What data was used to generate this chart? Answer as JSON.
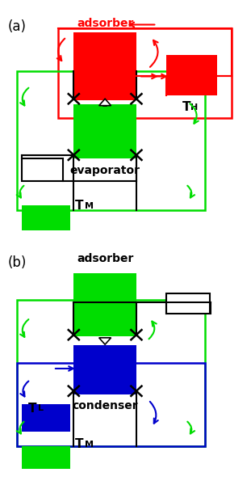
{
  "fig_width": 3.11,
  "fig_height": 6.0,
  "dpi": 100,
  "bg_color": "#ffffff",
  "red": "#ff0000",
  "green": "#00dd00",
  "blue": "#0000cc",
  "black": "#000000",
  "label_a": "(a)",
  "label_b": "(b)",
  "adsorber": "adsorber",
  "evaporator": "evaporator",
  "condenser": "condenser",
  "T_H": "T",
  "T_H_sub": "H",
  "T_M_a": "T",
  "T_M_a_sub": "M",
  "T_L": "T",
  "T_L_sub": "L",
  "T_M_b": "T",
  "T_M_b_sub": "M"
}
